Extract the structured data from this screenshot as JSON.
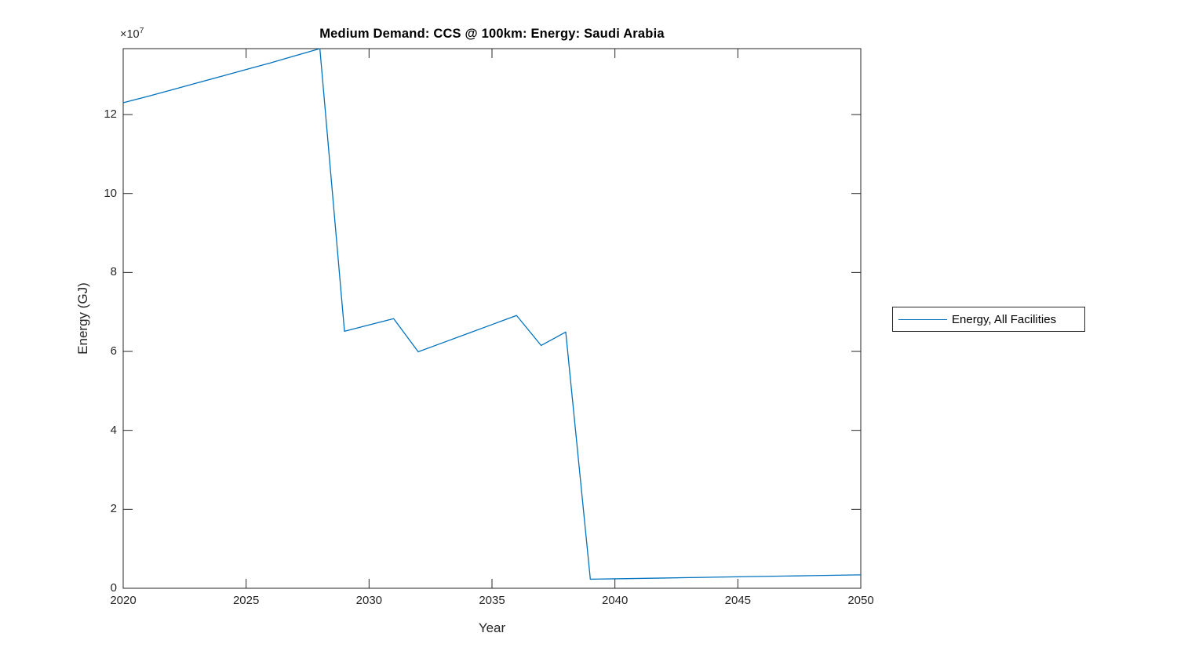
{
  "figure": {
    "background_color": "#ffffff",
    "axis_color": "#262626",
    "tick_label_color": "#262626",
    "title_color": "#000000"
  },
  "y_axis_exponent": {
    "base": "×10",
    "power": "7"
  },
  "legend": {
    "border_color": "#262626",
    "items": [
      {
        "label": "Energy, All Facilities",
        "color": "#0072BD"
      }
    ]
  },
  "chart_data": {
    "type": "line",
    "title": "Medium Demand: CCS @ 100km: Energy: Saudi Arabia",
    "xlabel": "Year",
    "ylabel": "Energy (GJ)",
    "grid": false,
    "legend_position": "right-outside",
    "xlim": [
      2020,
      2050
    ],
    "ylim": [
      0,
      136700000
    ],
    "x_ticks": [
      2020,
      2025,
      2030,
      2035,
      2040,
      2045,
      2050
    ],
    "y_ticks": [
      0,
      20000000,
      40000000,
      60000000,
      80000000,
      100000000,
      120000000
    ],
    "y_tick_labels": [
      "0",
      "2",
      "4",
      "6",
      "8",
      "10",
      "12"
    ],
    "x": [
      2020,
      2021,
      2022,
      2023,
      2024,
      2025,
      2026,
      2027,
      2028,
      2029,
      2030,
      2031,
      2032,
      2033,
      2034,
      2035,
      2036,
      2037,
      2038,
      2039,
      2040,
      2041,
      2042,
      2043,
      2044,
      2045,
      2046,
      2047,
      2048,
      2049,
      2050
    ],
    "series": [
      {
        "name": "Energy, All Facilities",
        "color": "#0072BD",
        "values": [
          123000000,
          124600000,
          126300000,
          128000000,
          129700000,
          131400000,
          133100000,
          134900000,
          136700000,
          65100000,
          66700000,
          68300000,
          59900000,
          62200000,
          64500000,
          66800000,
          69100000,
          61500000,
          64900000,
          2300000,
          2400000,
          2500000,
          2600000,
          2700000,
          2800000,
          2900000,
          3000000,
          3100000,
          3200000,
          3300000,
          3400000
        ]
      }
    ]
  }
}
